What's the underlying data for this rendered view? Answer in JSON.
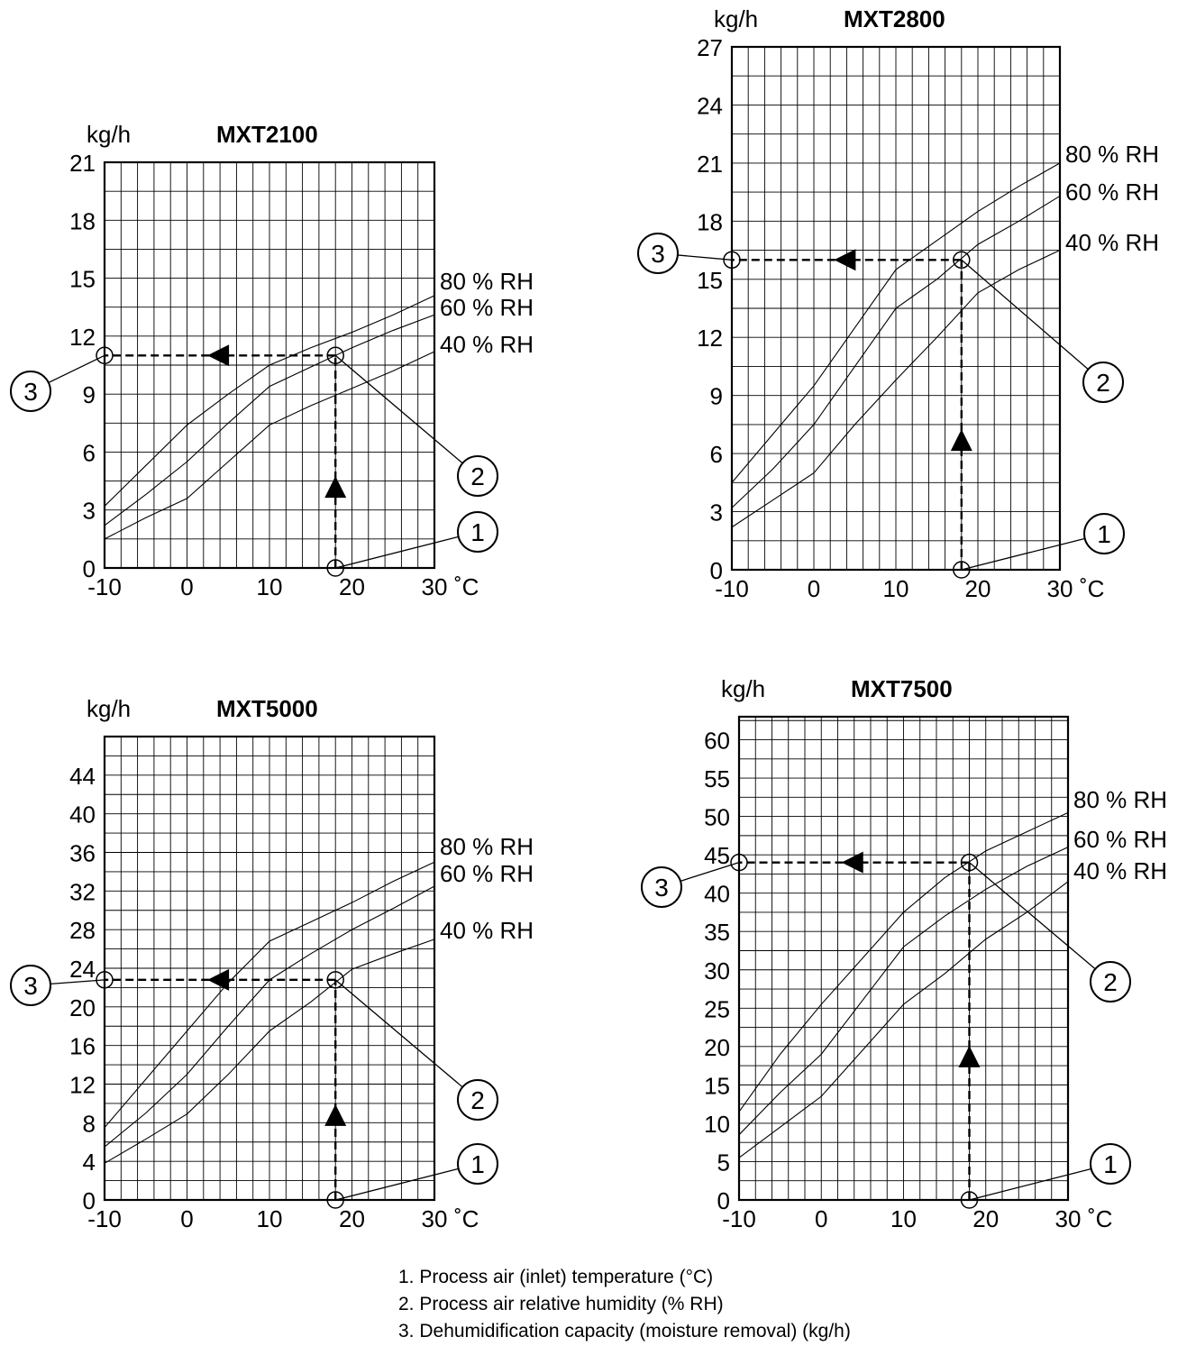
{
  "chart_data": [
    {
      "type": "line",
      "title": "MXT2100",
      "ylabel": "kg/h",
      "xunit": "˚C",
      "xlim": [
        -10,
        30
      ],
      "ylim": [
        0,
        21
      ],
      "x_ticks": [
        "-10",
        "0",
        "10",
        "20",
        "30"
      ],
      "y_ticks": [
        "0",
        "3",
        "6",
        "9",
        "12",
        "15",
        "18",
        "21"
      ],
      "series": [
        {
          "name": "80 % RH",
          "x": [
            -10,
            -5,
            0,
            5,
            10,
            15,
            20,
            25,
            30
          ],
          "y": [
            3.2,
            5.3,
            7.4,
            9.0,
            10.5,
            11.4,
            12.2,
            13.1,
            14.1
          ]
        },
        {
          "name": "60 % RH",
          "x": [
            -10,
            -5,
            0,
            5,
            10,
            15,
            20,
            25,
            30
          ],
          "y": [
            2.2,
            3.8,
            5.5,
            7.5,
            9.4,
            10.4,
            11.4,
            12.3,
            13.1
          ]
        },
        {
          "name": "40 % RH",
          "x": [
            -10,
            -5,
            0,
            5,
            10,
            15,
            20,
            25,
            30
          ],
          "y": [
            1.5,
            2.6,
            3.6,
            5.5,
            7.4,
            8.4,
            9.3,
            10.2,
            11.2
          ]
        }
      ],
      "example": {
        "temperature": 18,
        "capacity": 11
      }
    },
    {
      "type": "line",
      "title": "MXT2800",
      "ylabel": "kg/h",
      "xunit": "˚C",
      "xlim": [
        -10,
        30
      ],
      "ylim": [
        0,
        27
      ],
      "x_ticks": [
        "-10",
        "0",
        "10",
        "20",
        "30"
      ],
      "y_ticks": [
        "0",
        "3",
        "6",
        "9",
        "12",
        "15",
        "18",
        "21",
        "24",
        "27"
      ],
      "series": [
        {
          "name": "80 % RH",
          "x": [
            -10,
            -5,
            0,
            5,
            10,
            15,
            20,
            25,
            30
          ],
          "y": [
            4.5,
            7.0,
            9.5,
            12.5,
            15.5,
            17.0,
            18.5,
            19.8,
            21.0
          ]
        },
        {
          "name": "60 % RH",
          "x": [
            -10,
            -5,
            0,
            5,
            10,
            15,
            20,
            25,
            30
          ],
          "y": [
            3.2,
            5.2,
            7.5,
            10.5,
            13.5,
            15.0,
            16.8,
            18.0,
            19.3
          ]
        },
        {
          "name": "40 % RH",
          "x": [
            -10,
            -5,
            0,
            5,
            10,
            15,
            20,
            25,
            30
          ],
          "y": [
            2.2,
            3.6,
            5.0,
            7.5,
            9.8,
            12.0,
            14.3,
            15.5,
            16.5
          ]
        }
      ],
      "example": {
        "temperature": 18,
        "capacity": 16
      }
    },
    {
      "type": "line",
      "title": "MXT5000",
      "ylabel": "kg/h",
      "xunit": "˚C",
      "xlim": [
        -10,
        30
      ],
      "ylim": [
        0,
        48
      ],
      "x_ticks": [
        "-10",
        "0",
        "10",
        "20",
        "30"
      ],
      "y_ticks": [
        "0",
        "4",
        "8",
        "12",
        "16",
        "20",
        "24",
        "28",
        "32",
        "36",
        "40",
        "44"
      ],
      "series": [
        {
          "name": "80 % RH",
          "x": [
            -10,
            -5,
            0,
            5,
            10,
            15,
            20,
            25,
            30
          ],
          "y": [
            7.5,
            12.5,
            17.5,
            22.5,
            26.8,
            28.8,
            30.8,
            33.0,
            35.0
          ]
        },
        {
          "name": "60 % RH",
          "x": [
            -10,
            -5,
            0,
            5,
            10,
            15,
            20,
            25,
            30
          ],
          "y": [
            5.5,
            9.0,
            13.0,
            18.0,
            22.8,
            25.5,
            28.0,
            30.2,
            32.5
          ]
        },
        {
          "name": "40 % RH",
          "x": [
            -10,
            -5,
            0,
            5,
            10,
            15,
            20,
            25,
            30
          ],
          "y": [
            3.8,
            6.3,
            8.9,
            13.0,
            17.5,
            20.5,
            23.9,
            25.5,
            27.0
          ]
        }
      ],
      "example": {
        "temperature": 18,
        "capacity": 22.8
      }
    },
    {
      "type": "line",
      "title": "MXT7500",
      "ylabel": "kg/h",
      "xunit": "˚C",
      "xlim": [
        -10,
        30
      ],
      "ylim": [
        0,
        63
      ],
      "x_ticks": [
        "-10",
        "0",
        "10",
        "20",
        "30"
      ],
      "y_ticks": [
        "0",
        "5",
        "10",
        "15",
        "20",
        "25",
        "30",
        "35",
        "40",
        "45",
        "50",
        "55",
        "60"
      ],
      "series": [
        {
          "name": "80 % RH",
          "x": [
            -10,
            -5,
            0,
            5,
            10,
            15,
            20,
            25,
            30
          ],
          "y": [
            11.5,
            19.0,
            25.5,
            31.5,
            37.5,
            42.0,
            45.5,
            48.0,
            50.5
          ]
        },
        {
          "name": "60 % RH",
          "x": [
            -10,
            -5,
            0,
            5,
            10,
            15,
            20,
            25,
            30
          ],
          "y": [
            8.5,
            14.0,
            19.0,
            26.0,
            33.0,
            37.0,
            40.5,
            43.5,
            46.0
          ]
        },
        {
          "name": "40 % RH",
          "x": [
            -10,
            -5,
            0,
            5,
            10,
            15,
            20,
            25,
            30
          ],
          "y": [
            5.5,
            9.5,
            13.5,
            19.5,
            25.5,
            29.5,
            34.0,
            37.5,
            41.5
          ]
        }
      ],
      "example": {
        "temperature": 18,
        "capacity": 44
      }
    }
  ],
  "markers": [
    "1",
    "2",
    "3"
  ],
  "legend": [
    "1. Process air (inlet) temperature (°C)",
    "2. Process air relative humidity (% RH)",
    "3. Dehumidification capacity (moisture removal) (kg/h)"
  ]
}
